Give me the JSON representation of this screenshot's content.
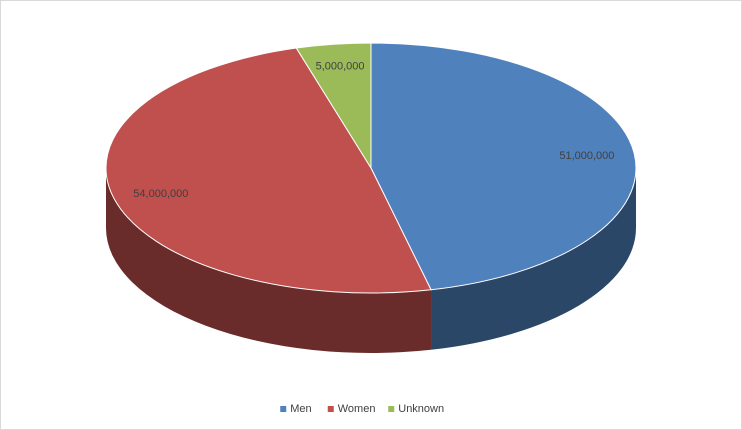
{
  "chart_data": {
    "type": "pie",
    "three_d": true,
    "categories": [
      "Men",
      "Women",
      "Unknown"
    ],
    "values": [
      51000000,
      54000000,
      5000000
    ],
    "value_labels": [
      "51,000,000",
      "54,000,000",
      "5,000,000"
    ],
    "colors": [
      "#4f81bd",
      "#c0504d",
      "#9bbb59"
    ],
    "legend": "bottom"
  }
}
